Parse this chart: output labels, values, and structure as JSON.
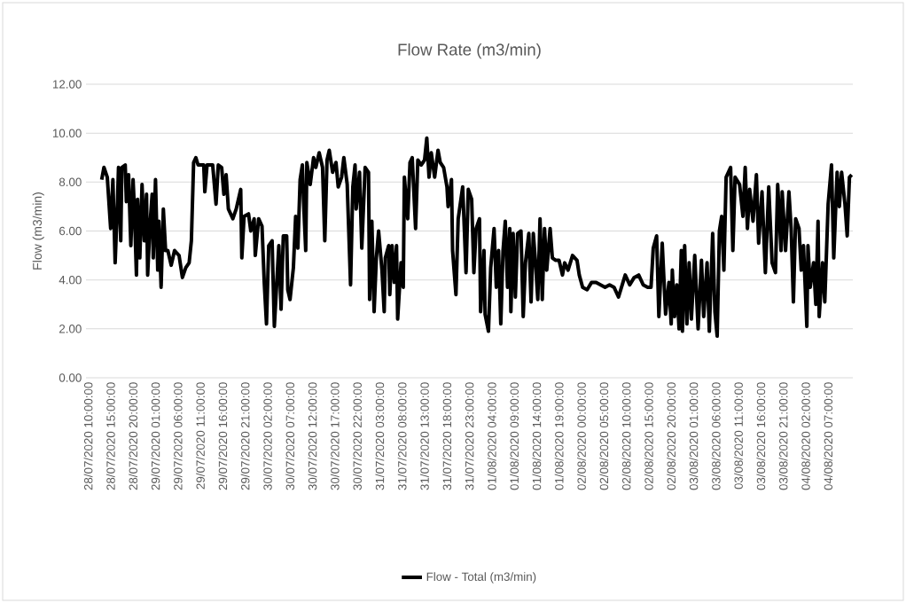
{
  "chart_data": {
    "type": "line",
    "title": "Flow Rate (m3/min)",
    "ylabel": "Flow (m3/min)",
    "xlim": [
      "2020-07-28T09:30",
      "2020-08-04T12:30"
    ],
    "xticks": [
      {
        "value": "2020-07-28T10:00",
        "label": "28/07/2020 10:00:00"
      },
      {
        "value": "2020-07-28T15:00",
        "label": "28/07/2020 15:00:00"
      },
      {
        "value": "2020-07-28T20:00",
        "label": "28/07/2020 20:00:00"
      },
      {
        "value": "2020-07-29T01:00",
        "label": "29/07/2020 01:00:00"
      },
      {
        "value": "2020-07-29T06:00",
        "label": "29/07/2020 06:00:00"
      },
      {
        "value": "2020-07-29T11:00",
        "label": "29/07/2020 11:00:00"
      },
      {
        "value": "2020-07-29T16:00",
        "label": "29/07/2020 16:00:00"
      },
      {
        "value": "2020-07-29T21:00",
        "label": "29/07/2020 21:00:00"
      },
      {
        "value": "2020-07-30T02:00",
        "label": "30/07/2020 02:00:00"
      },
      {
        "value": "2020-07-30T07:00",
        "label": "30/07/2020 07:00:00"
      },
      {
        "value": "2020-07-30T12:00",
        "label": "30/07/2020 12:00:00"
      },
      {
        "value": "2020-07-30T17:00",
        "label": "30/07/2020 17:00:00"
      },
      {
        "value": "2020-07-30T22:00",
        "label": "30/07/2020 22:00:00"
      },
      {
        "value": "2020-07-31T03:00",
        "label": "31/07/2020 03:00:00"
      },
      {
        "value": "2020-07-31T08:00",
        "label": "31/07/2020 08:00:00"
      },
      {
        "value": "2020-07-31T13:00",
        "label": "31/07/2020 13:00:00"
      },
      {
        "value": "2020-07-31T18:00",
        "label": "31/07/2020 18:00:00"
      },
      {
        "value": "2020-07-31T23:00",
        "label": "31/07/2020 23:00:00"
      },
      {
        "value": "2020-08-01T04:00",
        "label": "01/08/2020 04:00:00"
      },
      {
        "value": "2020-08-01T09:00",
        "label": "01/08/2020 09:00:00"
      },
      {
        "value": "2020-08-01T14:00",
        "label": "01/08/2020 14:00:00"
      },
      {
        "value": "2020-08-01T19:00",
        "label": "01/08/2020 19:00:00"
      },
      {
        "value": "2020-08-02T00:00",
        "label": "02/08/2020 00:00:00"
      },
      {
        "value": "2020-08-02T05:00",
        "label": "02/08/2020 05:00:00"
      },
      {
        "value": "2020-08-02T10:00",
        "label": "02/08/2020 10:00:00"
      },
      {
        "value": "2020-08-02T15:00",
        "label": "02/08/2020 15:00:00"
      },
      {
        "value": "2020-08-02T20:00",
        "label": "02/08/2020 20:00:00"
      },
      {
        "value": "2020-08-03T01:00",
        "label": "03/08/2020 01:00:00"
      },
      {
        "value": "2020-08-03T06:00",
        "label": "03/08/2020 06:00:00"
      },
      {
        "value": "2020-08-03T11:00",
        "label": "03/08/2020 11:00:00"
      },
      {
        "value": "2020-08-03T16:00",
        "label": "03/08/2020 16:00:00"
      },
      {
        "value": "2020-08-03T21:00",
        "label": "03/08/2020 21:00:00"
      },
      {
        "value": "2020-08-04T02:00",
        "label": "04/08/2020 02:00:00"
      },
      {
        "value": "2020-08-04T07:00",
        "label": "04/08/2020 07:00:00"
      }
    ],
    "ylim": [
      0,
      12
    ],
    "yticks": [
      {
        "value": 0,
        "label": "0.00"
      },
      {
        "value": 2,
        "label": "2.00"
      },
      {
        "value": 4,
        "label": "4.00"
      },
      {
        "value": 6,
        "label": "6.00"
      },
      {
        "value": 8,
        "label": "8.00"
      },
      {
        "value": 10,
        "label": "10.00"
      },
      {
        "value": 12,
        "label": "12.00"
      }
    ],
    "grid": "y",
    "legend": "bottom",
    "marker": "none",
    "line_style": "solid",
    "x": [
      "2020-07-28T13:00",
      "2020-07-28T13:30",
      "2020-07-28T14:15",
      "2020-07-28T15:00",
      "2020-07-28T15:30",
      "2020-07-28T16:00",
      "2020-07-28T16:30",
      "2020-07-28T16:45",
      "2020-07-28T17:15",
      "2020-07-28T17:30",
      "2020-07-28T18:15",
      "2020-07-28T18:30",
      "2020-07-28T19:00",
      "2020-07-28T19:30",
      "2020-07-28T20:00",
      "2020-07-28T20:15",
      "2020-07-28T20:45",
      "2020-07-28T21:00",
      "2020-07-28T21:30",
      "2020-07-28T22:00",
      "2020-07-28T22:30",
      "2020-07-28T23:00",
      "2020-07-28T23:15",
      "2020-07-28T23:45",
      "2020-07-29T00:15",
      "2020-07-29T00:30",
      "2020-07-29T01:00",
      "2020-07-29T01:30",
      "2020-07-29T01:45",
      "2020-07-29T02:15",
      "2020-07-29T02:45",
      "2020-07-29T03:15",
      "2020-07-29T03:45",
      "2020-07-29T04:30",
      "2020-07-29T05:15",
      "2020-07-29T06:15",
      "2020-07-29T07:00",
      "2020-07-29T07:45",
      "2020-07-29T08:30",
      "2020-07-29T09:00",
      "2020-07-29T09:30",
      "2020-07-29T10:00",
      "2020-07-29T10:30",
      "2020-07-29T11:45",
      "2020-07-29T12:00",
      "2020-07-29T12:30",
      "2020-07-29T13:45",
      "2020-07-29T14:30",
      "2020-07-29T15:00",
      "2020-07-29T15:45",
      "2020-07-29T16:15",
      "2020-07-29T16:45",
      "2020-07-29T17:15",
      "2020-07-29T18:15",
      "2020-07-29T19:00",
      "2020-07-29T20:00",
      "2020-07-29T20:15",
      "2020-07-29T20:45",
      "2020-07-29T21:45",
      "2020-07-29T22:15",
      "2020-07-29T23:00",
      "2020-07-29T23:15",
      "2020-07-30T00:00",
      "2020-07-30T00:45",
      "2020-07-30T01:15",
      "2020-07-30T01:45",
      "2020-07-30T02:15",
      "2020-07-30T03:00",
      "2020-07-30T03:30",
      "2020-07-30T04:30",
      "2020-07-30T05:00",
      "2020-07-30T05:30",
      "2020-07-30T06:15",
      "2020-07-30T06:30",
      "2020-07-30T07:00",
      "2020-07-30T07:45",
      "2020-07-30T08:15",
      "2020-07-30T08:45",
      "2020-07-30T09:15",
      "2020-07-30T09:45",
      "2020-07-30T10:00",
      "2020-07-30T10:30",
      "2020-07-30T10:45",
      "2020-07-30T11:30",
      "2020-07-30T12:15",
      "2020-07-30T12:45",
      "2020-07-30T13:30",
      "2020-07-30T14:15",
      "2020-07-30T14:45",
      "2020-07-30T15:15",
      "2020-07-30T15:45",
      "2020-07-30T16:30",
      "2020-07-30T17:15",
      "2020-07-30T17:45",
      "2020-07-30T18:30",
      "2020-07-30T19:00",
      "2020-07-30T19:45",
      "2020-07-30T20:30",
      "2020-07-30T21:00",
      "2020-07-30T21:30",
      "2020-07-30T21:45",
      "2020-07-30T22:30",
      "2020-07-30T23:00",
      "2020-07-30T23:45",
      "2020-07-31T00:30",
      "2020-07-31T00:45",
      "2020-07-31T01:15",
      "2020-07-31T01:45",
      "2020-07-31T02:15",
      "2020-07-31T02:45",
      "2020-07-31T03:30",
      "2020-07-31T04:00",
      "2020-07-31T04:15",
      "2020-07-31T05:00",
      "2020-07-31T05:15",
      "2020-07-31T05:45",
      "2020-07-31T06:15",
      "2020-07-31T06:45",
      "2020-07-31T07:00",
      "2020-07-31T07:45",
      "2020-07-31T08:15",
      "2020-07-31T08:30",
      "2020-07-31T09:15",
      "2020-07-31T09:45",
      "2020-07-31T10:15",
      "2020-07-31T11:00",
      "2020-07-31T11:30",
      "2020-07-31T12:15",
      "2020-07-31T13:00",
      "2020-07-31T13:30",
      "2020-07-31T14:00",
      "2020-07-31T14:30",
      "2020-07-31T15:15",
      "2020-07-31T16:00",
      "2020-07-31T16:30",
      "2020-07-31T17:15",
      "2020-07-31T18:00",
      "2020-07-31T18:15",
      "2020-07-31T19:00",
      "2020-07-31T19:15",
      "2020-07-31T20:00",
      "2020-07-31T20:30",
      "2020-07-31T21:30",
      "2020-07-31T22:15",
      "2020-07-31T22:45",
      "2020-07-31T23:30",
      "2020-08-01T00:00",
      "2020-08-01T00:30",
      "2020-08-01T01:15",
      "2020-08-01T01:30",
      "2020-08-01T02:15",
      "2020-08-01T02:30",
      "2020-08-01T03:15",
      "2020-08-01T03:45",
      "2020-08-01T04:30",
      "2020-08-01T05:00",
      "2020-08-01T05:30",
      "2020-08-01T06:00",
      "2020-08-01T06:30",
      "2020-08-01T07:00",
      "2020-08-01T07:30",
      "2020-08-01T08:00",
      "2020-08-01T08:15",
      "2020-08-01T08:45",
      "2020-08-01T09:15",
      "2020-08-01T09:45",
      "2020-08-01T10:30",
      "2020-08-01T11:00",
      "2020-08-01T11:30",
      "2020-08-01T12:15",
      "2020-08-01T12:45",
      "2020-08-01T13:15",
      "2020-08-01T13:45",
      "2020-08-01T14:15",
      "2020-08-01T14:45",
      "2020-08-01T15:15",
      "2020-08-01T15:45",
      "2020-08-01T16:15",
      "2020-08-01T17:00",
      "2020-08-01T17:30",
      "2020-08-01T18:15",
      "2020-08-01T19:00",
      "2020-08-01T19:45",
      "2020-08-01T20:15",
      "2020-08-01T21:00",
      "2020-08-01T22:00",
      "2020-08-01T23:00",
      "2020-08-01T23:30",
      "2020-08-02T00:15",
      "2020-08-02T01:15",
      "2020-08-02T02:15",
      "2020-08-02T03:15",
      "2020-08-02T04:15",
      "2020-08-02T05:15",
      "2020-08-02T06:15",
      "2020-08-02T07:15",
      "2020-08-02T08:15",
      "2020-08-02T09:15",
      "2020-08-02T09:45",
      "2020-08-02T10:45",
      "2020-08-02T11:45",
      "2020-08-02T12:45",
      "2020-08-02T13:45",
      "2020-08-02T14:45",
      "2020-08-02T15:30",
      "2020-08-02T16:00",
      "2020-08-02T16:45",
      "2020-08-02T17:15",
      "2020-08-02T18:00",
      "2020-08-02T18:45",
      "2020-08-02T19:30",
      "2020-08-02T20:00",
      "2020-08-02T20:15",
      "2020-08-02T20:45",
      "2020-08-02T21:15",
      "2020-08-02T21:45",
      "2020-08-02T22:15",
      "2020-08-02T22:30",
      "2020-08-02T23:00",
      "2020-08-02T23:30",
      "2020-08-03T00:00",
      "2020-08-03T00:30",
      "2020-08-03T01:15",
      "2020-08-03T02:00",
      "2020-08-03T02:45",
      "2020-08-03T03:15",
      "2020-08-03T04:00",
      "2020-08-03T04:30",
      "2020-08-03T05:15",
      "2020-08-03T05:45",
      "2020-08-03T06:15",
      "2020-08-03T06:45",
      "2020-08-03T07:15",
      "2020-08-03T07:45",
      "2020-08-03T08:15",
      "2020-08-03T09:15",
      "2020-08-03T09:45",
      "2020-08-03T10:15",
      "2020-08-03T11:15",
      "2020-08-03T12:00",
      "2020-08-03T12:30",
      "2020-08-03T13:00",
      "2020-08-03T13:30",
      "2020-08-03T14:15",
      "2020-08-03T15:00",
      "2020-08-03T15:30",
      "2020-08-03T16:15",
      "2020-08-03T17:00",
      "2020-08-03T17:45",
      "2020-08-03T18:30",
      "2020-08-03T19:15",
      "2020-08-03T19:45",
      "2020-08-03T20:30",
      "2020-08-03T20:45",
      "2020-08-03T21:30",
      "2020-08-03T22:15",
      "2020-08-03T22:45",
      "2020-08-03T23:15",
      "2020-08-03T23:45",
      "2020-08-04T00:30",
      "2020-08-04T01:00",
      "2020-08-04T01:30",
      "2020-08-04T02:15",
      "2020-08-04T02:30",
      "2020-08-04T03:00",
      "2020-08-04T03:45",
      "2020-08-04T04:15",
      "2020-08-04T04:45",
      "2020-08-04T05:00",
      "2020-08-04T05:45",
      "2020-08-04T06:15",
      "2020-08-04T07:00",
      "2020-08-04T07:45",
      "2020-08-04T08:15",
      "2020-08-04T09:00",
      "2020-08-04T09:30",
      "2020-08-04T10:00",
      "2020-08-04T10:45",
      "2020-08-04T11:15",
      "2020-08-04T11:45",
      "2020-08-04T12:15"
    ],
    "series": [
      {
        "name": "Flow - Total (m3/min)",
        "color": "#000000",
        "values": [
          8.1,
          8.6,
          8.2,
          6.1,
          8.1,
          4.7,
          7.1,
          8.6,
          5.6,
          8.6,
          8.7,
          7.2,
          8.3,
          5.4,
          8.1,
          7.1,
          4.2,
          7.3,
          4.9,
          7.9,
          5.6,
          7.5,
          4.2,
          6.2,
          7.5,
          4.9,
          8.1,
          4.4,
          6.4,
          3.7,
          6.9,
          5.2,
          5.2,
          4.6,
          5.2,
          5.0,
          4.1,
          4.5,
          4.7,
          5.6,
          8.8,
          9.0,
          8.7,
          8.7,
          7.6,
          8.7,
          8.7,
          7.1,
          8.7,
          8.6,
          7.5,
          8.3,
          6.9,
          6.5,
          6.9,
          7.7,
          4.9,
          6.6,
          6.7,
          6.0,
          6.5,
          5.0,
          6.5,
          6.2,
          3.9,
          2.2,
          5.4,
          5.6,
          2.1,
          5.4,
          2.8,
          5.8,
          5.8,
          3.6,
          3.2,
          4.5,
          6.6,
          5.3,
          8.1,
          8.7,
          7.3,
          5.2,
          8.8,
          7.9,
          9.0,
          8.6,
          9.2,
          8.6,
          5.6,
          8.9,
          9.3,
          8.4,
          8.8,
          7.8,
          8.2,
          9.0,
          7.9,
          3.8,
          7.8,
          8.7,
          6.9,
          8.4,
          5.3,
          8.6,
          8.4,
          3.2,
          6.4,
          2.7,
          4.9,
          6.0,
          4.4,
          2.7,
          4.9,
          5.4,
          3.4,
          5.4,
          3.9,
          5.4,
          2.4,
          4.7,
          3.7,
          8.2,
          6.5,
          8.8,
          9.0,
          6.1,
          8.9,
          8.7,
          8.9,
          9.8,
          8.2,
          9.2,
          8.2,
          9.3,
          8.8,
          8.6,
          7.8,
          7.0,
          8.1,
          5.2,
          3.4,
          6.5,
          7.8,
          4.3,
          7.7,
          7.3,
          4.3,
          6.1,
          6.5,
          2.7,
          5.2,
          2.6,
          1.9,
          4.5,
          6.1,
          3.7,
          5.2,
          2.2,
          5.2,
          6.4,
          3.7,
          6.1,
          2.7,
          5.9,
          3.3,
          5.9,
          6.0,
          2.5,
          4.7,
          5.9,
          3.1,
          5.9,
          4.7,
          3.2,
          6.5,
          3.2,
          6.1,
          4.4,
          6.1,
          4.9,
          4.8,
          4.8,
          4.2,
          4.7,
          4.4,
          5.0,
          4.8,
          4.2,
          3.7,
          3.6,
          3.9,
          3.9,
          3.8,
          3.7,
          3.8,
          3.7,
          3.3,
          3.9,
          4.2,
          3.8,
          4.1,
          4.2,
          3.8,
          3.7,
          3.7,
          5.3,
          5.8,
          2.5,
          5.5,
          2.6,
          3.9,
          2.2,
          4.4,
          2.5,
          3.8,
          2.0,
          5.2,
          1.9,
          5.4,
          2.2,
          4.7,
          2.4,
          5.0,
          2.0,
          4.8,
          2.5,
          4.7,
          1.9,
          5.9,
          2.7,
          1.7,
          6.0,
          6.6,
          4.4,
          8.2,
          8.6,
          5.2,
          8.2,
          7.9,
          6.6,
          8.6,
          6.1,
          7.7,
          6.4,
          8.3,
          5.5,
          7.6,
          4.3,
          7.8,
          4.7,
          4.3,
          7.9,
          5.2,
          7.6,
          5.2,
          7.6,
          6.1,
          3.1,
          6.5,
          6.1,
          4.4,
          5.4,
          2.1,
          5.4,
          3.7,
          4.7,
          3.0,
          6.4,
          2.5,
          4.7,
          3.1,
          7.1,
          8.7,
          4.9,
          8.4,
          7.0,
          8.4,
          7.1,
          5.8,
          8.2,
          8.3
        ]
      }
    ]
  }
}
